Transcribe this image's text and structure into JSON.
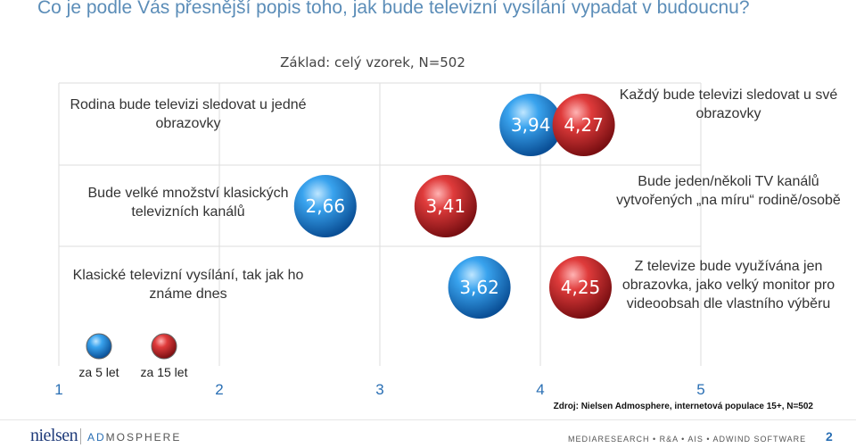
{
  "title": "Co je podle Vás přesnější popis toho, jak bude televizní vysílání vypadat v budoucnu?",
  "subtitle": "Základ: celý vzorek, N=502",
  "chart_data": {
    "type": "scatter",
    "xlim": [
      1,
      5
    ],
    "x_ticks": [
      "1",
      "2",
      "3",
      "4",
      "5"
    ],
    "grid": true,
    "legend_position": "bottom-left",
    "series": [
      {
        "name": "za 5 let",
        "color": "#1e88d8"
      },
      {
        "name": "za 15 let",
        "color": "#d33a3a"
      }
    ],
    "rows": [
      {
        "left_label": "Rodina bude televizi sledovat u jedné obrazovky",
        "right_label": "Každý bude televizi sledovat u své obrazovky",
        "values": [
          3.94,
          4.27
        ],
        "value_labels": [
          "3,94",
          "4,27"
        ]
      },
      {
        "left_label": "Bude velké množství klasických televizních kanálů",
        "right_label": "Bude jeden/několi TV kanálů vytvořených „na míru“ rodině/osobě",
        "values": [
          2.66,
          3.41
        ],
        "value_labels": [
          "2,66",
          "3,41"
        ]
      },
      {
        "left_label": "Klasické televizní vysílání, tak jak ho známe dnes",
        "right_label": "Z televize bude využívána jen obrazovka, jako velký monitor pro videoobsah dle vlastního výběru",
        "values": [
          3.62,
          4.25
        ],
        "value_labels": [
          "3,62",
          "4,25"
        ]
      }
    ]
  },
  "source": "Zdroj: Nielsen Admosphere, internetová populace 15+, N=502",
  "footer": {
    "brand1": "nielsen",
    "brand2_a": "AD",
    "brand2_b": "MOSPHERE",
    "right": "MEDIARESEARCH • R&A • AIS • ADWIND SOFTWARE",
    "page": "2"
  }
}
